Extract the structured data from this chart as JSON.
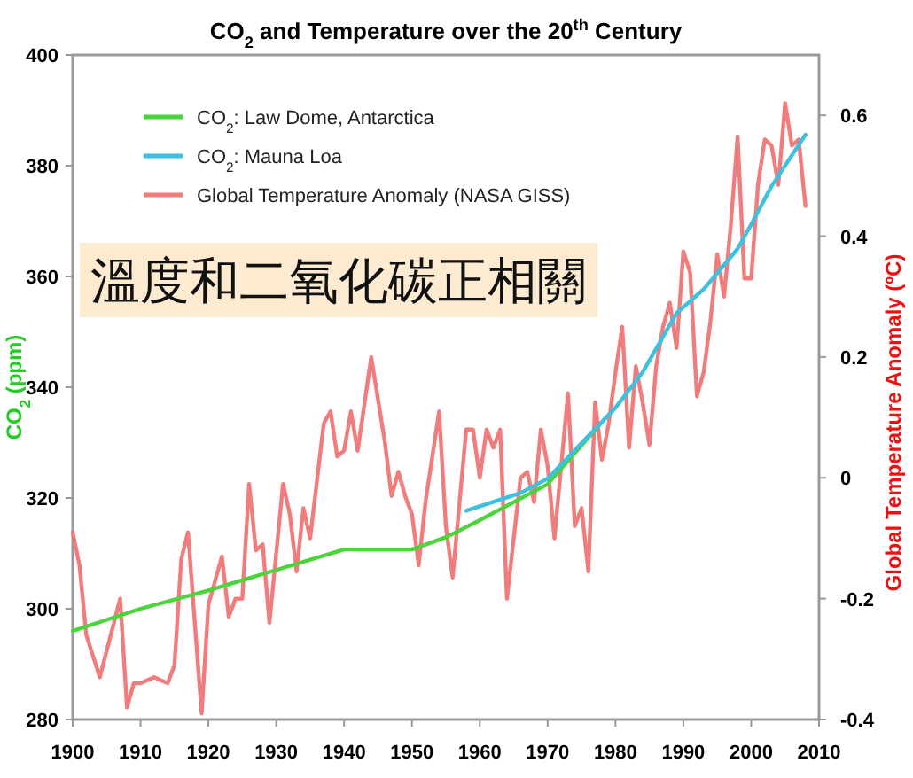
{
  "chart_data": {
    "type": "line",
    "title": "CO$_{2}$ and Temperature over the 20$^{th}$ Century",
    "ylabel": "CO$_{2}$ (ppm)",
    "y2label": "Global Temperature Anomaly (ºC)",
    "xlim": [
      1900,
      2010
    ],
    "xticks": [
      1900,
      1910,
      1920,
      1930,
      1940,
      1950,
      1960,
      1970,
      1980,
      1990,
      2000,
      2010
    ],
    "ylim": [
      280,
      400
    ],
    "yticks": [
      280,
      300,
      320,
      340,
      360,
      380,
      400
    ],
    "y2lim": [
      -0.4,
      0.7
    ],
    "y2ticks": [
      -0.4,
      -0.2,
      {
        "value": 0,
        "label": "0"
      },
      0.2,
      0.4,
      0.6
    ],
    "legend": "top left",
    "annotations": [
      "溫度和二氧化碳正相關"
    ],
    "series": [
      {
        "name": "CO$_{2}$: Law Dome, Antarctica",
        "color": "#4cd43c",
        "type": "line",
        "x": [
          1900,
          1910,
          1920,
          1930,
          1940,
          1950,
          1955,
          1960,
          1970,
          1978
        ],
        "values": [
          296,
          300,
          303.3,
          307,
          310.7,
          310.7,
          312.9,
          316,
          322.5,
          333.7
        ]
      },
      {
        "name": "CO$_{2}$: Mauna Loa",
        "color": "#3ec0e0",
        "type": "line",
        "x": [
          1958,
          1966,
          1970,
          1975,
          1980,
          1984,
          1989,
          1993,
          1998,
          2000,
          2003,
          2008
        ],
        "values": [
          317.7,
          320.9,
          323.5,
          329.9,
          336.3,
          342.7,
          353.4,
          357.7,
          365,
          369.4,
          376.3,
          385.6
        ]
      },
      {
        "name": "Global Temperature Anomaly (NASA GISS)",
        "color": "#f07c7c",
        "type": "line",
        "axis": "y2",
        "x": [
          1900,
          1901,
          1902,
          1904,
          1907,
          1908,
          1909,
          1910,
          1912,
          1914,
          1915,
          1916,
          1917,
          1918,
          1919,
          1920,
          1922,
          1923,
          1924,
          1925,
          1926,
          1927,
          1928,
          1929,
          1931,
          1932,
          1933,
          1934,
          1935,
          1937,
          1938,
          1939,
          1940,
          1941,
          1942,
          1944,
          1946,
          1947,
          1948,
          1949,
          1950,
          1951,
          1952,
          1954,
          1955,
          1956,
          1958,
          1959,
          1960,
          1961,
          1962,
          1963,
          1964,
          1965,
          1966,
          1967,
          1968,
          1969,
          1970,
          1971,
          1972,
          1973,
          1974,
          1975,
          1976,
          1977,
          1978,
          1979,
          1980,
          1981,
          1982,
          1983,
          1984,
          1985,
          1986,
          1987,
          1988,
          1989,
          1990,
          1991,
          1992,
          1993,
          1994,
          1995,
          1996,
          1997,
          1998,
          1999,
          2000,
          2001,
          2002,
          2003,
          2004,
          2005,
          2006,
          2007,
          2008
        ],
        "values": [
          -0.09,
          -0.145,
          -0.26,
          -0.33,
          -0.2,
          -0.38,
          -0.34,
          -0.34,
          -0.33,
          -0.34,
          -0.31,
          -0.135,
          -0.09,
          -0.24,
          -0.39,
          -0.21,
          -0.13,
          -0.23,
          -0.2,
          -0.2,
          -0.01,
          -0.12,
          -0.11,
          -0.24,
          -0.01,
          -0.06,
          -0.155,
          -0.05,
          -0.1,
          0.09,
          0.11,
          0.035,
          0.045,
          0.11,
          0.045,
          0.2,
          0.06,
          -0.03,
          0.01,
          -0.03,
          -0.06,
          -0.145,
          -0.04,
          0.11,
          -0.08,
          -0.165,
          0.08,
          0.08,
          0.0,
          0.08,
          0.05,
          0.08,
          -0.2,
          -0.1,
          0.0,
          0.01,
          -0.04,
          0.08,
          0.02,
          -0.1,
          0.02,
          0.14,
          -0.08,
          -0.05,
          -0.155,
          0.125,
          0.03,
          0.09,
          0.175,
          0.25,
          0.05,
          0.185,
          0.125,
          0.055,
          0.185,
          0.25,
          0.29,
          0.215,
          0.375,
          0.34,
          0.135,
          0.175,
          0.26,
          0.37,
          0.3,
          0.42,
          0.565,
          0.33,
          0.33,
          0.485,
          0.56,
          0.55,
          0.485,
          0.62,
          0.55,
          0.56,
          0.45
        ]
      }
    ]
  }
}
